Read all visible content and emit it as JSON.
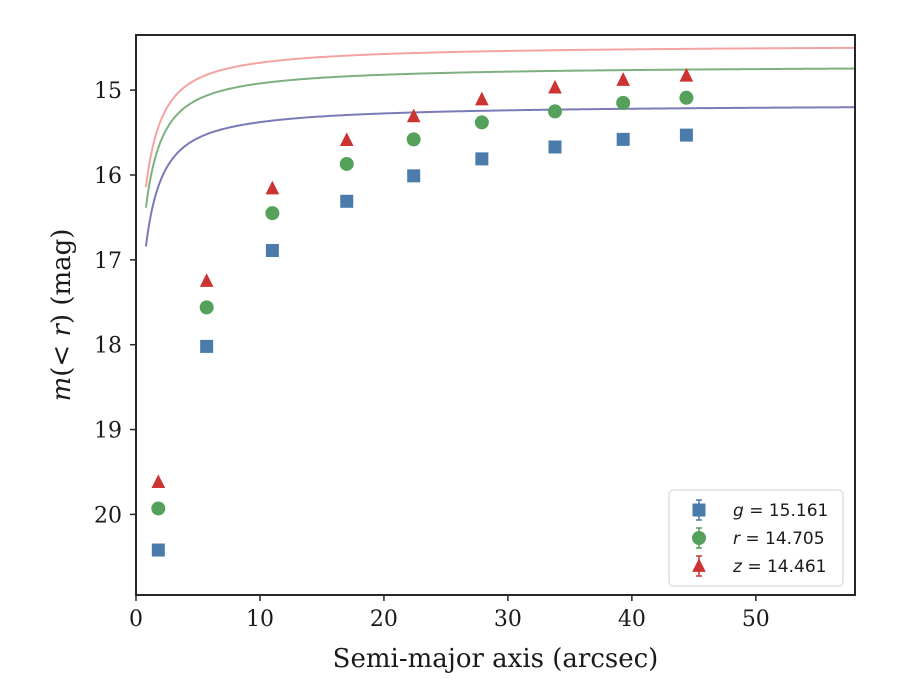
{
  "chart_data": {
    "type": "scatter",
    "xlabel": "Semi-major axis (arcsec)",
    "ylabel": {
      "pre": "m",
      "mid": "(< ",
      "var": "r",
      "post": ") (mag)"
    },
    "xlim": [
      0,
      58
    ],
    "ylim": [
      20.95,
      14.35
    ],
    "y_inverted": true,
    "xticks": [
      0,
      10,
      20,
      30,
      40,
      50
    ],
    "yticks": [
      15,
      16,
      17,
      18,
      19,
      20
    ],
    "legend_position": "bottom-right",
    "x": [
      1.8,
      5.7,
      11.0,
      17.0,
      22.4,
      27.9,
      33.8,
      39.3,
      44.4
    ],
    "series": [
      {
        "name": "g",
        "legend_var": "g",
        "legend_value": "= 15.161",
        "marker": "square",
        "color": "#4a7bab",
        "curve_color": "#7a7ab8",
        "values": [
          20.42,
          18.02,
          16.89,
          16.31,
          16.01,
          15.81,
          15.67,
          15.58,
          15.53
        ],
        "fit": {
          "m_total": 15.161,
          "a": 2.2,
          "b": 0.48
        }
      },
      {
        "name": "r",
        "legend_var": "r",
        "legend_value": "= 14.705",
        "marker": "circle",
        "color": "#55a05a",
        "curve_color": "#7fb07f",
        "values": [
          19.93,
          17.56,
          16.45,
          15.87,
          15.58,
          15.38,
          15.25,
          15.15,
          15.09
        ],
        "fit": {
          "m_total": 14.705,
          "a": 2.2,
          "b": 0.48
        }
      },
      {
        "name": "z",
        "legend_var": "z",
        "legend_value": "= 14.461",
        "marker": "triangle",
        "color": "#cc3333",
        "curve_color": "#f4a3a0",
        "values": [
          19.62,
          17.25,
          16.16,
          15.59,
          15.31,
          15.11,
          14.97,
          14.88,
          14.83
        ],
        "fit": {
          "m_total": 14.461,
          "a": 2.2,
          "b": 0.48
        }
      }
    ]
  }
}
